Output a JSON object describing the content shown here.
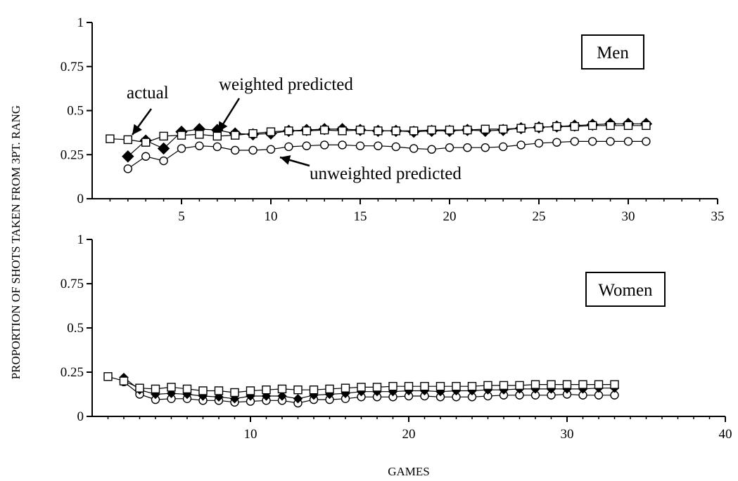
{
  "chart_data": [
    {
      "type": "line",
      "title": "Men",
      "ylabel": "PROPORTION OF SHOTS TAKEN FROM 3PT. RANG",
      "xlim": [
        0,
        35
      ],
      "ylim": [
        0,
        1
      ],
      "xticks": [
        5,
        10,
        15,
        20,
        25,
        30,
        35
      ],
      "yticks": [
        0,
        0.25,
        0.5,
        0.75,
        1
      ],
      "ytick_labels": [
        "0",
        "0.25",
        "0.5",
        "0.75",
        "1"
      ],
      "annotations": [
        "actual",
        "weighted predicted",
        "unweighted predicted"
      ],
      "series": [
        {
          "name": "actual",
          "marker": "square",
          "x": [
            1,
            2,
            3,
            4,
            5,
            6,
            7,
            8,
            9,
            10,
            11,
            12,
            13,
            14,
            15,
            16,
            17,
            18,
            19,
            20,
            21,
            22,
            23,
            24,
            25,
            26,
            27,
            28,
            29,
            30,
            31
          ],
          "y": [
            0.34,
            0.335,
            0.32,
            0.355,
            0.36,
            0.365,
            0.355,
            0.36,
            0.37,
            0.38,
            0.385,
            0.385,
            0.39,
            0.385,
            0.39,
            0.385,
            0.385,
            0.385,
            0.39,
            0.39,
            0.39,
            0.395,
            0.395,
            0.4,
            0.405,
            0.41,
            0.41,
            0.415,
            0.415,
            0.415,
            0.415
          ]
        },
        {
          "name": "weighted predicted",
          "marker": "diamond",
          "x": [
            2,
            3,
            4,
            5,
            6,
            7,
            8,
            9,
            10,
            11,
            12,
            13,
            14,
            15,
            16,
            17,
            18,
            19,
            20,
            21,
            22,
            23,
            24,
            25,
            26,
            27,
            28,
            29,
            30,
            31
          ],
          "y": [
            0.24,
            0.33,
            0.285,
            0.38,
            0.395,
            0.39,
            0.37,
            0.365,
            0.37,
            0.385,
            0.39,
            0.395,
            0.395,
            0.39,
            0.385,
            0.385,
            0.38,
            0.385,
            0.385,
            0.39,
            0.385,
            0.39,
            0.4,
            0.405,
            0.41,
            0.415,
            0.42,
            0.425,
            0.425,
            0.425
          ]
        },
        {
          "name": "unweighted predicted",
          "marker": "circle",
          "x": [
            2,
            3,
            4,
            5,
            6,
            7,
            8,
            9,
            10,
            11,
            12,
            13,
            14,
            15,
            16,
            17,
            18,
            19,
            20,
            21,
            22,
            23,
            24,
            25,
            26,
            27,
            28,
            29,
            30,
            31
          ],
          "y": [
            0.17,
            0.24,
            0.215,
            0.285,
            0.3,
            0.295,
            0.275,
            0.275,
            0.28,
            0.295,
            0.3,
            0.305,
            0.305,
            0.3,
            0.3,
            0.295,
            0.285,
            0.28,
            0.29,
            0.29,
            0.29,
            0.295,
            0.305,
            0.315,
            0.32,
            0.325,
            0.325,
            0.325,
            0.325,
            0.325
          ]
        }
      ]
    },
    {
      "type": "line",
      "title": "Women",
      "xlabel": "GAMES",
      "xlim": [
        0,
        40
      ],
      "ylim": [
        0,
        1
      ],
      "xticks": [
        10,
        20,
        30,
        40
      ],
      "yticks": [
        0,
        0.25,
        0.5,
        0.75,
        1
      ],
      "ytick_labels": [
        "0",
        "0.25",
        "0.5",
        "0.75",
        "1"
      ],
      "series": [
        {
          "name": "actual",
          "marker": "square",
          "x": [
            1,
            2,
            3,
            4,
            5,
            6,
            7,
            8,
            9,
            10,
            11,
            12,
            13,
            14,
            15,
            16,
            17,
            18,
            19,
            20,
            21,
            22,
            23,
            24,
            25,
            26,
            27,
            28,
            29,
            30,
            31,
            32,
            33
          ],
          "y": [
            0.225,
            0.2,
            0.16,
            0.155,
            0.165,
            0.155,
            0.145,
            0.145,
            0.135,
            0.145,
            0.15,
            0.155,
            0.15,
            0.15,
            0.155,
            0.16,
            0.165,
            0.165,
            0.17,
            0.17,
            0.17,
            0.17,
            0.17,
            0.17,
            0.175,
            0.175,
            0.175,
            0.18,
            0.18,
            0.18,
            0.18,
            0.18,
            0.18
          ]
        },
        {
          "name": "weighted predicted",
          "marker": "diamond",
          "x": [
            2,
            3,
            4,
            5,
            6,
            7,
            8,
            9,
            10,
            11,
            12,
            13,
            14,
            15,
            16,
            17,
            18,
            19,
            20,
            21,
            22,
            23,
            24,
            25,
            26,
            27,
            28,
            29,
            30,
            31,
            32,
            33
          ],
          "y": [
            0.22,
            0.15,
            0.125,
            0.13,
            0.125,
            0.115,
            0.11,
            0.1,
            0.115,
            0.115,
            0.115,
            0.1,
            0.12,
            0.125,
            0.13,
            0.14,
            0.14,
            0.14,
            0.145,
            0.145,
            0.14,
            0.145,
            0.145,
            0.15,
            0.15,
            0.155,
            0.155,
            0.155,
            0.155,
            0.155,
            0.16,
            0.16
          ]
        },
        {
          "name": "unweighted predicted",
          "marker": "circle",
          "x": [
            2,
            3,
            4,
            5,
            6,
            7,
            8,
            9,
            10,
            11,
            12,
            13,
            14,
            15,
            16,
            17,
            18,
            19,
            20,
            21,
            22,
            23,
            24,
            25,
            26,
            27,
            28,
            29,
            30,
            31,
            32,
            33
          ],
          "y": [
            0.195,
            0.125,
            0.095,
            0.1,
            0.1,
            0.09,
            0.09,
            0.08,
            0.085,
            0.09,
            0.09,
            0.075,
            0.095,
            0.095,
            0.1,
            0.11,
            0.11,
            0.11,
            0.115,
            0.115,
            0.11,
            0.11,
            0.11,
            0.115,
            0.12,
            0.12,
            0.12,
            0.12,
            0.125,
            0.12,
            0.12,
            0.12
          ]
        }
      ]
    }
  ]
}
